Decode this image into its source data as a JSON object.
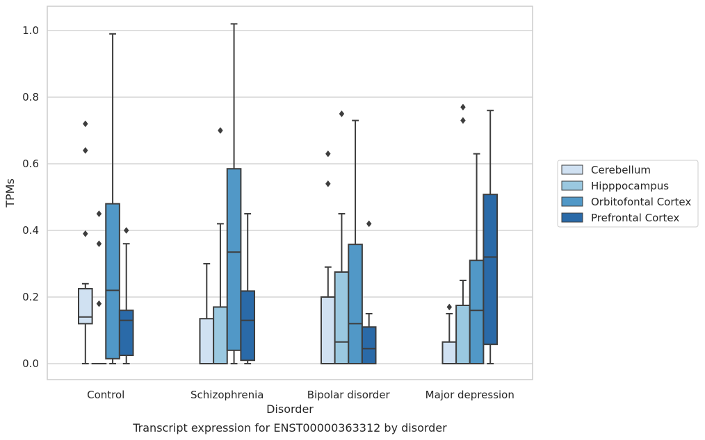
{
  "chart_data": {
    "type": "box",
    "title": "",
    "caption": "Transcript expression for ENST00000363312 by disorder",
    "xlabel": "Disorder",
    "ylabel": "TPMs",
    "ylim": [
      -0.05,
      1.075
    ],
    "yticks": [
      "0.0",
      "0.2",
      "0.4",
      "0.6",
      "0.8",
      "1.0"
    ],
    "grid": "horizontal",
    "legend_position": "right",
    "categories": [
      "Control",
      "Schizophrenia",
      "Bipolar disorder",
      "Major depression"
    ],
    "series": [
      {
        "name": "Cerebellum",
        "color": "#d0e1f2",
        "boxes": [
          {
            "whisker_low": 0.0,
            "q1": 0.12,
            "median": 0.14,
            "q3": 0.225,
            "whisker_high": 0.24,
            "outliers": [
              0.39,
              0.64,
              0.72
            ]
          },
          {
            "whisker_low": 0.0,
            "q1": 0.0,
            "median": 0.0,
            "q3": 0.135,
            "whisker_high": 0.3,
            "outliers": []
          },
          {
            "whisker_low": 0.0,
            "q1": 0.0,
            "median": 0.0,
            "q3": 0.2,
            "whisker_high": 0.29,
            "outliers": [
              0.54,
              0.63
            ]
          },
          {
            "whisker_low": 0.0,
            "q1": 0.0,
            "median": 0.0,
            "q3": 0.065,
            "whisker_high": 0.15,
            "outliers": [
              0.17
            ]
          }
        ]
      },
      {
        "name": "Hipppocampus",
        "color": "#9ac8e0",
        "boxes": [
          {
            "whisker_low": 0.0,
            "q1": 0.0,
            "median": 0.0,
            "q3": 0.0,
            "whisker_high": 0.0,
            "outliers": [
              0.18,
              0.36,
              0.45
            ]
          },
          {
            "whisker_low": 0.0,
            "q1": 0.0,
            "median": 0.0,
            "q3": 0.17,
            "whisker_high": 0.42,
            "outliers": [
              0.7
            ]
          },
          {
            "whisker_low": 0.0,
            "q1": 0.0,
            "median": 0.065,
            "q3": 0.275,
            "whisker_high": 0.45,
            "outliers": [
              0.75
            ]
          },
          {
            "whisker_low": 0.0,
            "q1": 0.0,
            "median": 0.0,
            "q3": 0.175,
            "whisker_high": 0.25,
            "outliers": [
              0.73,
              0.77
            ]
          }
        ]
      },
      {
        "name": "Orbitofontal Cortex",
        "color": "#5198c7",
        "boxes": [
          {
            "whisker_low": 0.0,
            "q1": 0.015,
            "median": 0.22,
            "q3": 0.48,
            "whisker_high": 0.99,
            "outliers": []
          },
          {
            "whisker_low": 0.0,
            "q1": 0.04,
            "median": 0.335,
            "q3": 0.585,
            "whisker_high": 1.02,
            "outliers": []
          },
          {
            "whisker_low": 0.0,
            "q1": 0.0,
            "median": 0.12,
            "q3": 0.358,
            "whisker_high": 0.73,
            "outliers": []
          },
          {
            "whisker_low": 0.0,
            "q1": 0.0,
            "median": 0.16,
            "q3": 0.31,
            "whisker_high": 0.63,
            "outliers": []
          }
        ]
      },
      {
        "name": "Prefrontal Cortex",
        "color": "#2a6aa8",
        "boxes": [
          {
            "whisker_low": 0.0,
            "q1": 0.025,
            "median": 0.13,
            "q3": 0.16,
            "whisker_high": 0.36,
            "outliers": [
              0.4
            ]
          },
          {
            "whisker_low": 0.0,
            "q1": 0.01,
            "median": 0.13,
            "q3": 0.218,
            "whisker_high": 0.45,
            "outliers": []
          },
          {
            "whisker_low": 0.0,
            "q1": 0.0,
            "median": 0.045,
            "q3": 0.11,
            "whisker_high": 0.15,
            "outliers": [
              0.42
            ]
          },
          {
            "whisker_low": 0.0,
            "q1": 0.058,
            "median": 0.32,
            "q3": 0.508,
            "whisker_high": 0.76,
            "outliers": []
          }
        ]
      }
    ]
  }
}
